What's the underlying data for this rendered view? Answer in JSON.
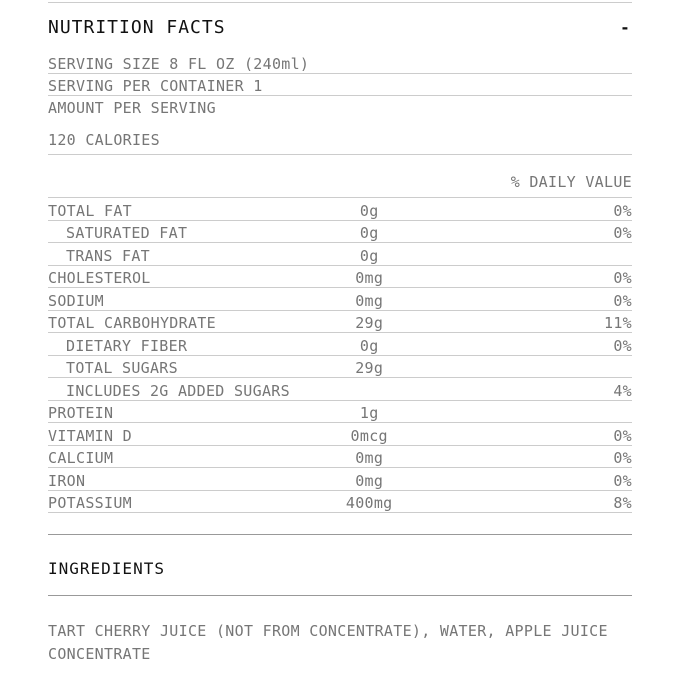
{
  "panel": {
    "nutrition_header": {
      "title": "NUTRITION FACTS",
      "collapse_icon": "-"
    },
    "serving": {
      "size": "SERVING SIZE 8 FL OZ (240ml)",
      "per_container": "SERVING PER CONTAINER 1",
      "amount_per_serving": "AMOUNT PER SERVING",
      "calories": "120 CALORIES"
    },
    "table": {
      "daily_value_header": "% DAILY VALUE",
      "rows": [
        {
          "label": "TOTAL FAT",
          "amount": "0g",
          "dv": "0%",
          "indent": false
        },
        {
          "label": "SATURATED FAT",
          "amount": "0g",
          "dv": "0%",
          "indent": true
        },
        {
          "label": "TRANS FAT",
          "amount": "0g",
          "dv": "",
          "indent": true
        },
        {
          "label": "CHOLESTEROL",
          "amount": "0mg",
          "dv": "0%",
          "indent": false
        },
        {
          "label": "SODIUM",
          "amount": "0mg",
          "dv": "0%",
          "indent": false
        },
        {
          "label": "TOTAL CARBOHYDRATE",
          "amount": "29g",
          "dv": "11%",
          "indent": false
        },
        {
          "label": "DIETARY FIBER",
          "amount": "0g",
          "dv": "0%",
          "indent": true
        },
        {
          "label": "TOTAL SUGARS",
          "amount": "29g",
          "dv": "",
          "indent": true
        },
        {
          "label": "INCLUDES 2G ADDED SUGARS",
          "amount": "",
          "dv": "4%",
          "indent": true
        },
        {
          "label": "PROTEIN",
          "amount": "1g",
          "dv": "",
          "indent": false
        },
        {
          "label": "VITAMIN D",
          "amount": "0mcg",
          "dv": "0%",
          "indent": false
        },
        {
          "label": "CALCIUM",
          "amount": "0mg",
          "dv": "0%",
          "indent": false
        },
        {
          "label": "IRON",
          "amount": "0mg",
          "dv": "0%",
          "indent": false
        },
        {
          "label": "POTASSIUM",
          "amount": "400mg",
          "dv": "8%",
          "indent": false
        }
      ]
    },
    "ingredients_header": {
      "title": "INGREDIENTS"
    },
    "ingredients_text": "TART CHERRY JUICE (NOT FROM CONCENTRATE), WATER, APPLE JUICE CONCENTRATE"
  },
  "colors": {
    "heading_text": "#111111",
    "body_text": "#767676",
    "rule_light": "#cccccc",
    "rule_dark": "#999999",
    "background": "#ffffff"
  }
}
